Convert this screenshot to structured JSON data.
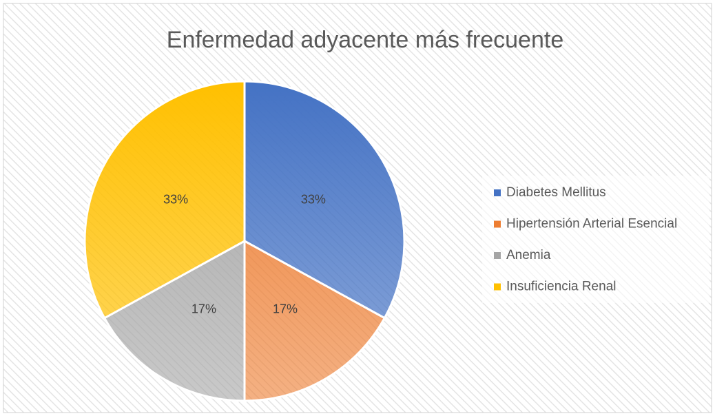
{
  "chart_data": {
    "type": "pie",
    "title": "Enfermedad adyacente más frecuente",
    "categories": [
      "Diabetes Mellitus",
      "Hipertensión Arterial Esencial",
      "Anemia",
      "Insuficiencia Renal"
    ],
    "values": [
      33,
      17,
      17,
      33
    ],
    "value_labels": [
      "33%",
      "17%",
      "17%",
      "33%"
    ],
    "colors": [
      "#4472c4",
      "#ed7d31",
      "#a5a5a5",
      "#ffc000"
    ],
    "legend": "right"
  }
}
